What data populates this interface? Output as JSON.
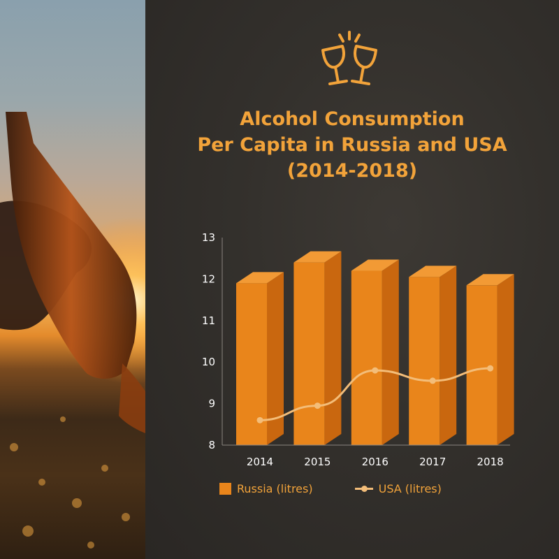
{
  "header": {
    "title_lines": [
      "Alcohol Consumption",
      "Per Capita in Russia and USA",
      "(2014-2018)"
    ],
    "icon": "clinking-glasses-icon"
  },
  "colors": {
    "accent": "#f2a33a",
    "bar_front": "#e9851b",
    "bar_side": "#c9670f",
    "bar_top": "#f29a35",
    "line": "#f3bd79",
    "panel": "#33302c"
  },
  "chart_data": {
    "type": "bar",
    "categories": [
      "2014",
      "2015",
      "2016",
      "2017",
      "2018"
    ],
    "series": [
      {
        "name": "Russia (litres)",
        "type": "bar",
        "values": [
          11.9,
          12.4,
          12.2,
          12.05,
          11.85
        ]
      },
      {
        "name": "USA (litres)",
        "type": "line",
        "values": [
          8.6,
          8.95,
          9.8,
          9.55,
          9.85
        ]
      }
    ],
    "ylim": [
      8,
      13
    ],
    "yticks": [
      "8",
      "9",
      "10",
      "11",
      "12",
      "13"
    ],
    "grid": false,
    "legend_position": "bottom",
    "legend": [
      "Russia (litres)",
      "USA (litres)"
    ]
  }
}
